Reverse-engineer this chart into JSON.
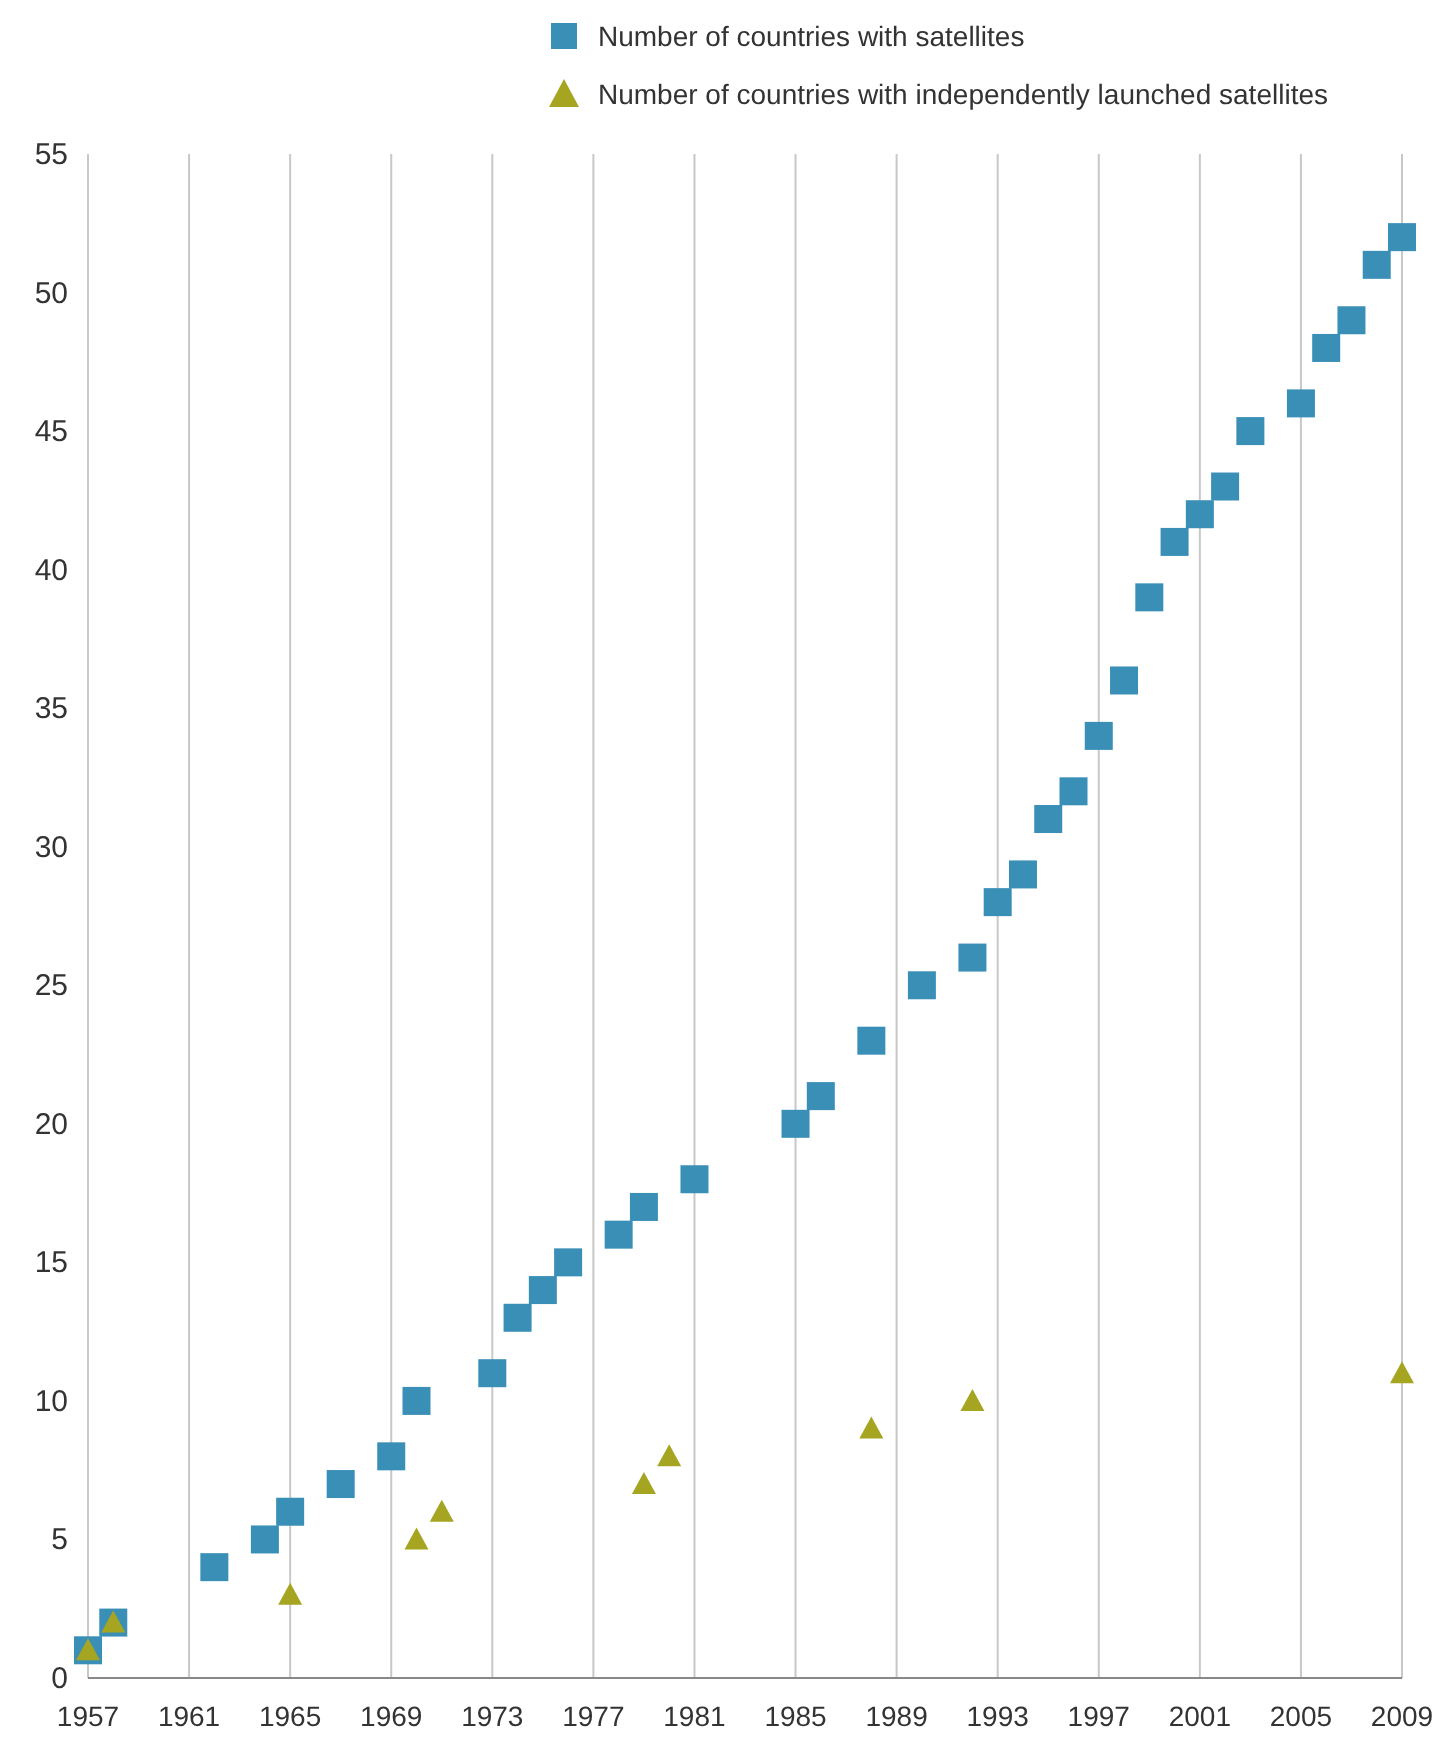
{
  "chart_data": {
    "type": "scatter",
    "xlim": [
      1957,
      2009
    ],
    "xticks": [
      1957,
      1961,
      1965,
      1969,
      1973,
      1977,
      1981,
      1985,
      1989,
      1993,
      1997,
      2001,
      2005,
      2009
    ],
    "ylim": [
      0,
      55
    ],
    "yticks": [
      0,
      5,
      10,
      15,
      20,
      25,
      30,
      35,
      40,
      45,
      50,
      55
    ],
    "grid": "x",
    "legend": "top right",
    "series": [
      {
        "name": "Number of countries with satellites",
        "color": "#3a8fb7",
        "marker": "square",
        "x": [
          1957,
          1958,
          1962,
          1964,
          1965,
          1967,
          1969,
          1970,
          1973,
          1974,
          1975,
          1976,
          1978,
          1979,
          1981,
          1985,
          1986,
          1988,
          1990,
          1992,
          1993,
          1994,
          1995,
          1996,
          1997,
          1998,
          1999,
          2000,
          2001,
          2002,
          2003,
          2005,
          2006,
          2007,
          2008,
          2009
        ],
        "values": [
          1,
          2,
          4,
          5,
          6,
          7,
          8,
          10,
          11,
          13,
          14,
          15,
          16,
          17,
          18,
          20,
          21,
          23,
          25,
          26,
          28,
          29,
          31,
          32,
          34,
          36,
          39,
          41,
          42,
          43,
          45,
          46,
          48,
          49,
          51,
          52
        ]
      },
      {
        "name": "Number of countries with independently launched satellites",
        "color": "#a5a521",
        "marker": "triangle",
        "x": [
          1957,
          1958,
          1965,
          1970,
          1971,
          1979,
          1980,
          1988,
          1992,
          2009
        ],
        "values": [
          1,
          2,
          3,
          5,
          6,
          7,
          8,
          9,
          10,
          11
        ]
      }
    ]
  }
}
